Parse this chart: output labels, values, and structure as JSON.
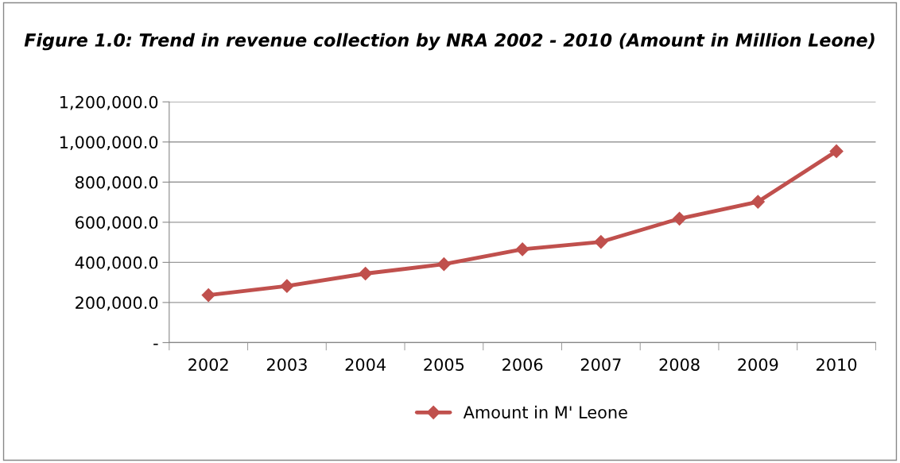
{
  "chart_data": {
    "type": "line",
    "title": "Figure 1.0: Trend in revenue collection by NRA 2002 - 2010 (Amount in Million Leone)",
    "categories": [
      "2002",
      "2003",
      "2004",
      "2005",
      "2006",
      "2007",
      "2008",
      "2009",
      "2010"
    ],
    "series": [
      {
        "name": "Amount in M' Leone",
        "color": "#c0504d",
        "values": [
          237000,
          282000,
          344000,
          391000,
          465000,
          502000,
          618000,
          702000,
          954000
        ]
      }
    ],
    "ylim": [
      0,
      1200000
    ],
    "yticks": [
      {
        "value": 0,
        "label": "-"
      },
      {
        "value": 200000,
        "label": "200,000.0"
      },
      {
        "value": 400000,
        "label": "400,000.0"
      },
      {
        "value": 600000,
        "label": "600,000.0"
      },
      {
        "value": 800000,
        "label": "800,000.0"
      },
      {
        "value": 1000000,
        "label": "1,000,000.0"
      },
      {
        "value": 1200000,
        "label": "1,200,000.0"
      }
    ],
    "grid": "y",
    "legend": "bottom",
    "marker": "diamond",
    "line_style": "solid"
  }
}
